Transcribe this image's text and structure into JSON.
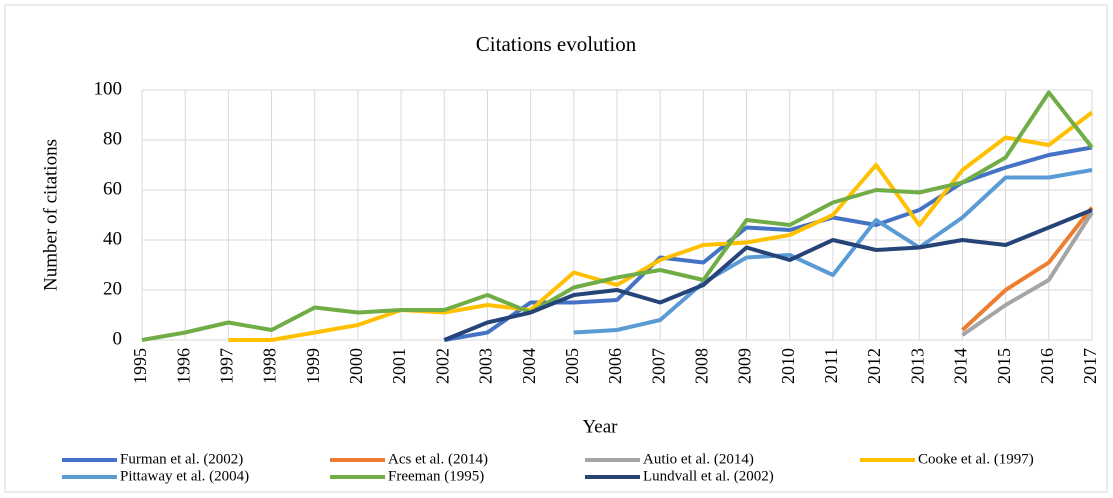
{
  "chart_data": {
    "type": "line",
    "title": "Citations evolution",
    "x_label": "Year",
    "y_label": "Number of citations",
    "x": [
      1995,
      1996,
      1997,
      1998,
      1999,
      2000,
      2001,
      2002,
      2003,
      2004,
      2005,
      2006,
      2007,
      2008,
      2009,
      2010,
      2011,
      2012,
      2013,
      2014,
      2015,
      2016,
      2017
    ],
    "xlim": [
      1995,
      2017
    ],
    "xticks": [
      1995,
      1996,
      1997,
      1998,
      1999,
      2000,
      2001,
      2002,
      2003,
      2004,
      2005,
      2006,
      2007,
      2008,
      2009,
      2010,
      2011,
      2012,
      2013,
      2014,
      2015,
      2016,
      2017
    ],
    "ylim": [
      0,
      100
    ],
    "yticks": [
      0,
      20,
      40,
      60,
      80,
      100
    ],
    "grid": true,
    "series": [
      {
        "name": "Furman et al. (2002)",
        "color": "#4472c4",
        "values": [
          null,
          null,
          null,
          null,
          null,
          null,
          null,
          0,
          3,
          15,
          15,
          16,
          33,
          31,
          45,
          44,
          49,
          46,
          52,
          63,
          69,
          74,
          77
        ]
      },
      {
        "name": "Acs et al. (2014)",
        "color": "#ed7d31",
        "values": [
          null,
          null,
          null,
          null,
          null,
          null,
          null,
          null,
          null,
          null,
          null,
          null,
          null,
          null,
          null,
          null,
          null,
          null,
          null,
          4,
          20,
          31,
          53
        ]
      },
      {
        "name": "Autio et al. (2014)",
        "color": "#a5a5a5",
        "values": [
          null,
          null,
          null,
          null,
          null,
          null,
          null,
          null,
          null,
          null,
          null,
          null,
          null,
          null,
          null,
          null,
          null,
          null,
          null,
          2,
          14,
          24,
          51
        ]
      },
      {
        "name": "Cooke et al. (1997)",
        "color": "#ffc000",
        "values": [
          null,
          null,
          0,
          0,
          3,
          6,
          12,
          11,
          14,
          12,
          27,
          22,
          32,
          38,
          39,
          42,
          50,
          70,
          46,
          68,
          81,
          78,
          91
        ]
      },
      {
        "name": "Pittaway et al. (2004)",
        "color": "#5b9bd5",
        "values": [
          null,
          null,
          null,
          null,
          null,
          null,
          null,
          null,
          null,
          null,
          3,
          4,
          8,
          23,
          33,
          34,
          26,
          48,
          37,
          49,
          65,
          65,
          68
        ]
      },
      {
        "name": "Freeman (1995)",
        "color": "#70ad47",
        "values": [
          0,
          3,
          7,
          4,
          13,
          11,
          12,
          12,
          18,
          11,
          21,
          25,
          28,
          24,
          48,
          46,
          55,
          60,
          59,
          63,
          73,
          99,
          77
        ]
      },
      {
        "name": "Lundvall et al. (2002)",
        "color": "#264478",
        "values": [
          null,
          null,
          null,
          null,
          null,
          null,
          null,
          0,
          7,
          11,
          18,
          20,
          15,
          22,
          37,
          32,
          40,
          36,
          37,
          40,
          38,
          45,
          52
        ]
      }
    ]
  }
}
